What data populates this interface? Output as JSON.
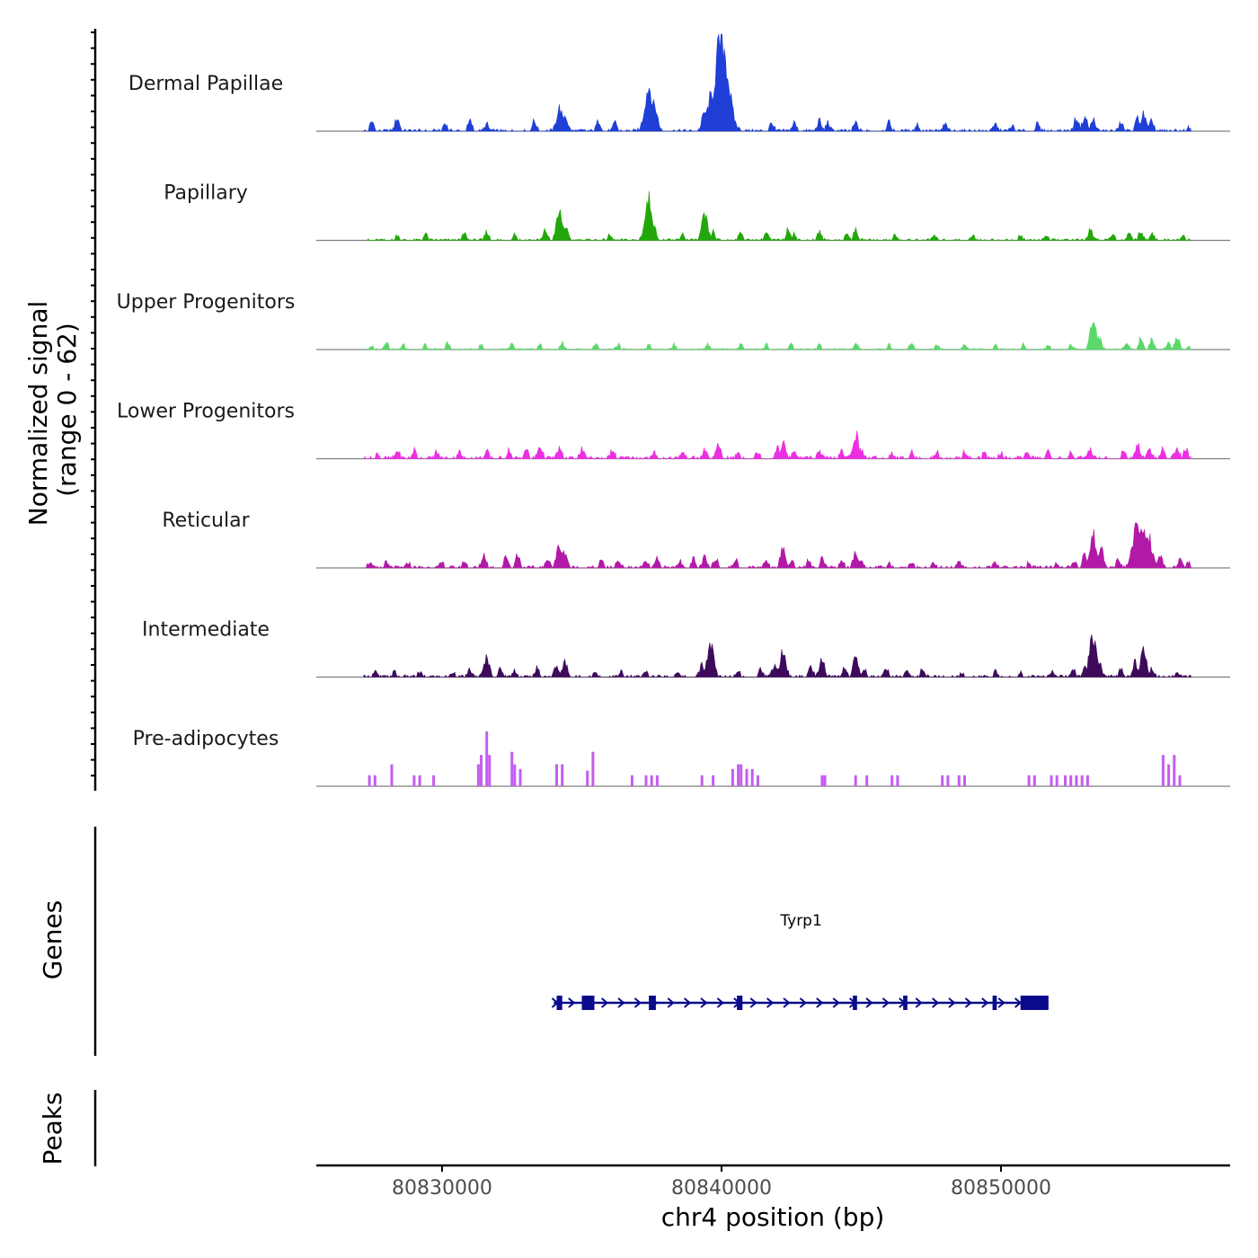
{
  "chart_data": {
    "type": "area",
    "title": "",
    "ylabel_line1": "Normalized signal",
    "ylabel_line2": "(range 0 - 62)",
    "xlabel": "chr4 position (bp)",
    "chromosome": "chr4",
    "xlim": [
      80825500,
      80858200
    ],
    "ylim": [
      0,
      62
    ],
    "x_ticks": [
      80830000,
      80840000,
      80850000
    ],
    "x_tick_labels": [
      "80830000",
      "80840000",
      "80850000"
    ],
    "region_start": 80827200,
    "region_end": 80856800,
    "tracks": [
      {
        "name": "Dermal Papillae",
        "color": "#1f3fd6",
        "mode": "area",
        "baseline": 2,
        "peaks": [
          [
            80827500,
            6
          ],
          [
            80828400,
            8
          ],
          [
            80830100,
            5
          ],
          [
            80831000,
            6
          ],
          [
            80831600,
            4
          ],
          [
            80833300,
            6
          ],
          [
            80834200,
            14
          ],
          [
            80834400,
            10
          ],
          [
            80835600,
            6
          ],
          [
            80836200,
            5
          ],
          [
            80837400,
            28
          ],
          [
            80837600,
            16
          ],
          [
            80839400,
            12
          ],
          [
            80839600,
            20
          ],
          [
            80839800,
            25
          ],
          [
            80840000,
            58
          ],
          [
            80840100,
            24
          ],
          [
            80841800,
            5
          ],
          [
            80842600,
            5
          ],
          [
            80843500,
            6
          ],
          [
            80843800,
            5
          ],
          [
            80844800,
            5
          ],
          [
            80846000,
            5
          ],
          [
            80847000,
            4
          ],
          [
            80848000,
            4
          ],
          [
            80849800,
            4
          ],
          [
            80850400,
            3
          ],
          [
            80851300,
            4
          ],
          [
            80852700,
            8
          ],
          [
            80853000,
            9
          ],
          [
            80853300,
            7
          ],
          [
            80854300,
            5
          ],
          [
            80854900,
            8
          ],
          [
            80855100,
            10
          ],
          [
            80855400,
            6
          ],
          [
            80856700,
            2
          ]
        ]
      },
      {
        "name": "Papillary",
        "color": "#23a70b",
        "mode": "area",
        "baseline": 1.5,
        "peaks": [
          [
            80828400,
            3
          ],
          [
            80829400,
            4
          ],
          [
            80830800,
            4
          ],
          [
            80831600,
            5
          ],
          [
            80832600,
            4
          ],
          [
            80833700,
            6
          ],
          [
            80834200,
            17
          ],
          [
            80834400,
            9
          ],
          [
            80836000,
            3
          ],
          [
            80837400,
            25
          ],
          [
            80837600,
            7
          ],
          [
            80838600,
            4
          ],
          [
            80839400,
            15
          ],
          [
            80839700,
            5
          ],
          [
            80840700,
            5
          ],
          [
            80841600,
            5
          ],
          [
            80842400,
            7
          ],
          [
            80842600,
            4
          ],
          [
            80843500,
            5
          ],
          [
            80844500,
            4
          ],
          [
            80844800,
            6
          ],
          [
            80846200,
            3
          ],
          [
            80847600,
            3
          ],
          [
            80849000,
            3
          ],
          [
            80850700,
            3
          ],
          [
            80851600,
            3
          ],
          [
            80853200,
            7
          ],
          [
            80854000,
            4
          ],
          [
            80854600,
            5
          ],
          [
            80855000,
            6
          ],
          [
            80855400,
            5
          ],
          [
            80856500,
            3
          ]
        ]
      },
      {
        "name": "Upper Progenitors",
        "color": "#5ad96a",
        "mode": "area",
        "baseline": 1,
        "peaks": [
          [
            80827500,
            2
          ],
          [
            80828000,
            5
          ],
          [
            80828600,
            3
          ],
          [
            80829400,
            3
          ],
          [
            80830200,
            4
          ],
          [
            80831400,
            3
          ],
          [
            80832500,
            3
          ],
          [
            80833500,
            3
          ],
          [
            80834300,
            4
          ],
          [
            80835500,
            3
          ],
          [
            80836300,
            3
          ],
          [
            80837400,
            3
          ],
          [
            80838300,
            3
          ],
          [
            80839500,
            3
          ],
          [
            80840700,
            3
          ],
          [
            80841600,
            3
          ],
          [
            80842500,
            3
          ],
          [
            80843500,
            3
          ],
          [
            80844800,
            4
          ],
          [
            80846000,
            3
          ],
          [
            80846800,
            4
          ],
          [
            80847700,
            3
          ],
          [
            80848700,
            3
          ],
          [
            80849800,
            3
          ],
          [
            80850800,
            3
          ],
          [
            80851700,
            3
          ],
          [
            80852500,
            3
          ],
          [
            80853300,
            18
          ],
          [
            80853500,
            8
          ],
          [
            80854500,
            5
          ],
          [
            80855000,
            7
          ],
          [
            80855400,
            6
          ],
          [
            80856000,
            5
          ],
          [
            80856300,
            8
          ],
          [
            80856700,
            2
          ]
        ]
      },
      {
        "name": "Lower Progenitors",
        "color": "#ec2fe2",
        "mode": "area",
        "baseline": 2.5,
        "peaks": [
          [
            80827700,
            3
          ],
          [
            80828400,
            5
          ],
          [
            80829000,
            5
          ],
          [
            80829800,
            4
          ],
          [
            80830600,
            4
          ],
          [
            80831600,
            4
          ],
          [
            80832400,
            5
          ],
          [
            80833000,
            6
          ],
          [
            80833500,
            8
          ],
          [
            80834200,
            6
          ],
          [
            80835000,
            5
          ],
          [
            80836100,
            5
          ],
          [
            80837600,
            3
          ],
          [
            80838600,
            4
          ],
          [
            80839400,
            5
          ],
          [
            80839900,
            8
          ],
          [
            80840600,
            4
          ],
          [
            80841300,
            4
          ],
          [
            80842000,
            6
          ],
          [
            80842200,
            10
          ],
          [
            80842600,
            5
          ],
          [
            80843500,
            4
          ],
          [
            80844300,
            4
          ],
          [
            80844800,
            15
          ],
          [
            80845000,
            5
          ],
          [
            80846100,
            3
          ],
          [
            80846800,
            4
          ],
          [
            80847700,
            4
          ],
          [
            80848700,
            4
          ],
          [
            80849400,
            3
          ],
          [
            80850000,
            3
          ],
          [
            80850900,
            4
          ],
          [
            80851700,
            4
          ],
          [
            80852500,
            4
          ],
          [
            80853200,
            5
          ],
          [
            80854400,
            5
          ],
          [
            80854900,
            8
          ],
          [
            80855300,
            7
          ],
          [
            80855800,
            6
          ],
          [
            80856300,
            7
          ],
          [
            80856600,
            6
          ]
        ]
      },
      {
        "name": "Reticular",
        "color": "#b219a7",
        "mode": "area",
        "baseline": 2,
        "peaks": [
          [
            80827400,
            3
          ],
          [
            80828000,
            3
          ],
          [
            80828800,
            3
          ],
          [
            80830000,
            3
          ],
          [
            80830800,
            4
          ],
          [
            80831500,
            8
          ],
          [
            80832300,
            7
          ],
          [
            80832700,
            8
          ],
          [
            80833800,
            6
          ],
          [
            80834200,
            14
          ],
          [
            80834400,
            10
          ],
          [
            80835700,
            4
          ],
          [
            80836300,
            5
          ],
          [
            80837300,
            4
          ],
          [
            80837700,
            5
          ],
          [
            80838500,
            4
          ],
          [
            80839000,
            5
          ],
          [
            80839400,
            6
          ],
          [
            80839800,
            6
          ],
          [
            80840500,
            5
          ],
          [
            80841600,
            5
          ],
          [
            80842200,
            12
          ],
          [
            80842500,
            4
          ],
          [
            80843100,
            4
          ],
          [
            80843600,
            5
          ],
          [
            80844300,
            5
          ],
          [
            80844800,
            9
          ],
          [
            80845000,
            5
          ],
          [
            80846000,
            3
          ],
          [
            80846800,
            3
          ],
          [
            80847600,
            3
          ],
          [
            80848500,
            3
          ],
          [
            80849800,
            3
          ],
          [
            80851000,
            3
          ],
          [
            80852000,
            3
          ],
          [
            80852600,
            4
          ],
          [
            80853000,
            8
          ],
          [
            80853300,
            20
          ],
          [
            80853600,
            10
          ],
          [
            80854200,
            5
          ],
          [
            80854700,
            12
          ],
          [
            80854900,
            30
          ],
          [
            80855100,
            25
          ],
          [
            80855300,
            18
          ],
          [
            80855700,
            6
          ],
          [
            80856400,
            5
          ],
          [
            80856700,
            3
          ]
        ]
      },
      {
        "name": "Intermediate",
        "color": "#3e0b5c",
        "mode": "area",
        "baseline": 2,
        "peaks": [
          [
            80827600,
            3
          ],
          [
            80828300,
            3
          ],
          [
            80829200,
            3
          ],
          [
            80830400,
            3
          ],
          [
            80831000,
            4
          ],
          [
            80831600,
            12
          ],
          [
            80832100,
            5
          ],
          [
            80832600,
            4
          ],
          [
            80833400,
            5
          ],
          [
            80834100,
            7
          ],
          [
            80834400,
            9
          ],
          [
            80835500,
            3
          ],
          [
            80836400,
            3
          ],
          [
            80837300,
            3
          ],
          [
            80838400,
            3
          ],
          [
            80839300,
            7
          ],
          [
            80839600,
            20
          ],
          [
            80840600,
            4
          ],
          [
            80841400,
            5
          ],
          [
            80841900,
            8
          ],
          [
            80842200,
            15
          ],
          [
            80843200,
            6
          ],
          [
            80843600,
            10
          ],
          [
            80844400,
            6
          ],
          [
            80844800,
            12
          ],
          [
            80845100,
            5
          ],
          [
            80845900,
            5
          ],
          [
            80846600,
            4
          ],
          [
            80847200,
            5
          ],
          [
            80848600,
            2
          ],
          [
            80849800,
            3
          ],
          [
            80850700,
            3
          ],
          [
            80851800,
            3
          ],
          [
            80852600,
            4
          ],
          [
            80853000,
            7
          ],
          [
            80853300,
            25
          ],
          [
            80853500,
            10
          ],
          [
            80854300,
            5
          ],
          [
            80854800,
            9
          ],
          [
            80855100,
            16
          ],
          [
            80855400,
            5
          ],
          [
            80856300,
            3
          ]
        ]
      },
      {
        "name": "Pre-adipocytes",
        "color": "#c45df2",
        "mode": "bars",
        "baseline": 0,
        "peaks": [
          [
            80827400,
            7
          ],
          [
            80827600,
            7
          ],
          [
            80828200,
            14
          ],
          [
            80829000,
            7
          ],
          [
            80829200,
            7
          ],
          [
            80829700,
            7
          ],
          [
            80831300,
            14
          ],
          [
            80831400,
            20
          ],
          [
            80831600,
            35
          ],
          [
            80831700,
            20
          ],
          [
            80832500,
            22
          ],
          [
            80832600,
            14
          ],
          [
            80832800,
            11
          ],
          [
            80834100,
            14
          ],
          [
            80834300,
            14
          ],
          [
            80835200,
            10
          ],
          [
            80835400,
            22
          ],
          [
            80836800,
            7
          ],
          [
            80837300,
            7
          ],
          [
            80837500,
            7
          ],
          [
            80837700,
            7
          ],
          [
            80839300,
            7
          ],
          [
            80839700,
            7
          ],
          [
            80840400,
            11
          ],
          [
            80840600,
            14
          ],
          [
            80840700,
            14
          ],
          [
            80840900,
            11
          ],
          [
            80841100,
            11
          ],
          [
            80841300,
            7
          ],
          [
            80843600,
            7
          ],
          [
            80843700,
            7
          ],
          [
            80844800,
            7
          ],
          [
            80845200,
            7
          ],
          [
            80846100,
            7
          ],
          [
            80846300,
            7
          ],
          [
            80847900,
            7
          ],
          [
            80848100,
            7
          ],
          [
            80848500,
            7
          ],
          [
            80848700,
            7
          ],
          [
            80851000,
            7
          ],
          [
            80851200,
            7
          ],
          [
            80851800,
            7
          ],
          [
            80852000,
            7
          ],
          [
            80852300,
            7
          ],
          [
            80852500,
            7
          ],
          [
            80852700,
            7
          ],
          [
            80852900,
            7
          ],
          [
            80853100,
            7
          ],
          [
            80855800,
            20
          ],
          [
            80856000,
            14
          ],
          [
            80856200,
            20
          ],
          [
            80856400,
            7
          ]
        ]
      }
    ],
    "genes": [
      {
        "name": "Tyrp1",
        "strand": "+",
        "start": 80834000,
        "end": 80851700,
        "color": "#0a0a8c",
        "exons": [
          [
            80834100,
            80834300
          ],
          [
            80835000,
            80835450
          ],
          [
            80837400,
            80837650
          ],
          [
            80840550,
            80840750
          ],
          [
            80844700,
            80844850
          ],
          [
            80846500,
            80846650
          ],
          [
            80849700,
            80849850
          ],
          [
            80850700,
            80851700
          ]
        ]
      }
    ],
    "panel_labels": {
      "genes": "Genes",
      "peaks": "Peaks"
    },
    "peaks_regions": []
  }
}
